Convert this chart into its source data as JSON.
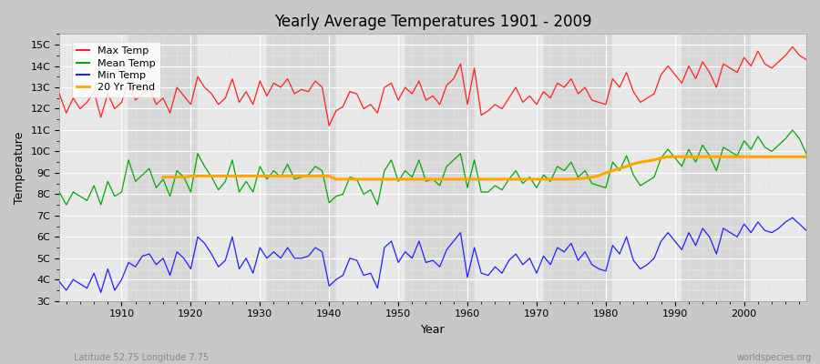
{
  "title": "Yearly Average Temperatures 1901 - 2009",
  "ylabel": "Temperature",
  "xlabel": "Year",
  "subtitle_left": "Latitude 52.75 Longitude 7.75",
  "subtitle_right": "worldspecies.org",
  "ylim": [
    3,
    15.5
  ],
  "xlim": [
    1901,
    2009
  ],
  "yticks": [
    3,
    4,
    5,
    6,
    7,
    8,
    9,
    10,
    11,
    12,
    13,
    14,
    15
  ],
  "ytick_labels": [
    "3C",
    "4C",
    "5C",
    "6C",
    "7C",
    "8C",
    "9C",
    "10C",
    "11C",
    "12C",
    "13C",
    "14C",
    "15C"
  ],
  "xticks": [
    1910,
    1920,
    1930,
    1940,
    1950,
    1960,
    1970,
    1980,
    1990,
    2000
  ],
  "colors": {
    "max_temp": "#ff2020",
    "mean_temp": "#00aa00",
    "min_temp": "#2020ff",
    "trend": "#ffa500",
    "bg_fig": "#c8c8c8",
    "bg_ax": "#dcdcdc"
  },
  "legend": {
    "max_label": "Max Temp",
    "mean_label": "Mean Temp",
    "min_label": "Min Temp",
    "trend_label": "20 Yr Trend"
  },
  "years": [
    1901,
    1902,
    1903,
    1904,
    1905,
    1906,
    1907,
    1908,
    1909,
    1910,
    1911,
    1912,
    1913,
    1914,
    1915,
    1916,
    1917,
    1918,
    1919,
    1920,
    1921,
    1922,
    1923,
    1924,
    1925,
    1926,
    1927,
    1928,
    1929,
    1930,
    1931,
    1932,
    1933,
    1934,
    1935,
    1936,
    1937,
    1938,
    1939,
    1940,
    1941,
    1942,
    1943,
    1944,
    1945,
    1946,
    1947,
    1948,
    1949,
    1950,
    1951,
    1952,
    1953,
    1954,
    1955,
    1956,
    1957,
    1958,
    1959,
    1960,
    1961,
    1962,
    1963,
    1964,
    1965,
    1966,
    1967,
    1968,
    1969,
    1970,
    1971,
    1972,
    1973,
    1974,
    1975,
    1976,
    1977,
    1978,
    1979,
    1980,
    1981,
    1982,
    1983,
    1984,
    1985,
    1986,
    1987,
    1988,
    1989,
    1990,
    1991,
    1992,
    1993,
    1994,
    1995,
    1996,
    1997,
    1998,
    1999,
    2000,
    2001,
    2002,
    2003,
    2004,
    2005,
    2006,
    2007,
    2008,
    2009
  ],
  "max_temp": [
    12.7,
    11.8,
    12.5,
    12.0,
    12.3,
    12.8,
    11.6,
    12.7,
    12.0,
    12.3,
    13.3,
    12.4,
    12.7,
    13.0,
    12.2,
    12.5,
    11.8,
    13.0,
    12.6,
    12.2,
    13.5,
    13.0,
    12.7,
    12.2,
    12.5,
    13.4,
    12.3,
    12.8,
    12.2,
    13.3,
    12.6,
    13.2,
    13.0,
    13.4,
    12.7,
    12.9,
    12.8,
    13.3,
    13.0,
    11.2,
    11.9,
    12.1,
    12.8,
    12.7,
    12.0,
    12.2,
    11.8,
    13.0,
    13.2,
    12.4,
    13.0,
    12.7,
    13.3,
    12.4,
    12.6,
    12.2,
    13.1,
    13.4,
    14.1,
    12.2,
    13.9,
    11.7,
    11.9,
    12.2,
    12.0,
    12.5,
    13.0,
    12.3,
    12.6,
    12.2,
    12.8,
    12.5,
    13.2,
    13.0,
    13.4,
    12.7,
    13.0,
    12.4,
    12.3,
    12.2,
    13.4,
    13.0,
    13.7,
    12.8,
    12.3,
    12.5,
    12.7,
    13.6,
    14.0,
    13.6,
    13.2,
    14.0,
    13.4,
    14.2,
    13.7,
    13.0,
    14.1,
    13.9,
    13.7,
    14.4,
    14.0,
    14.7,
    14.1,
    13.9,
    14.2,
    14.5,
    14.9,
    14.5,
    14.3
  ],
  "mean_temp": [
    8.1,
    7.5,
    8.1,
    7.9,
    7.7,
    8.4,
    7.5,
    8.6,
    7.9,
    8.1,
    9.6,
    8.6,
    8.9,
    9.2,
    8.3,
    8.7,
    7.9,
    9.1,
    8.8,
    8.1,
    9.9,
    9.3,
    8.8,
    8.2,
    8.6,
    9.6,
    8.1,
    8.6,
    8.1,
    9.3,
    8.7,
    9.1,
    8.8,
    9.4,
    8.7,
    8.8,
    8.9,
    9.3,
    9.1,
    7.6,
    7.9,
    8.0,
    8.8,
    8.7,
    8.0,
    8.2,
    7.5,
    9.1,
    9.6,
    8.6,
    9.1,
    8.8,
    9.6,
    8.6,
    8.7,
    8.4,
    9.3,
    9.6,
    9.9,
    8.3,
    9.6,
    8.1,
    8.1,
    8.4,
    8.2,
    8.7,
    9.1,
    8.5,
    8.8,
    8.3,
    8.9,
    8.6,
    9.3,
    9.1,
    9.5,
    8.8,
    9.1,
    8.5,
    8.4,
    8.3,
    9.5,
    9.1,
    9.8,
    8.9,
    8.4,
    8.6,
    8.8,
    9.7,
    10.1,
    9.7,
    9.3,
    10.1,
    9.5,
    10.3,
    9.8,
    9.1,
    10.2,
    10.0,
    9.8,
    10.5,
    10.1,
    10.7,
    10.2,
    10.0,
    10.3,
    10.6,
    11.0,
    10.6,
    9.9
  ],
  "min_temp": [
    3.9,
    3.5,
    4.0,
    3.8,
    3.6,
    4.3,
    3.4,
    4.5,
    3.5,
    4.0,
    4.8,
    4.6,
    5.1,
    5.2,
    4.7,
    5.0,
    4.2,
    5.3,
    5.0,
    4.5,
    6.0,
    5.7,
    5.2,
    4.6,
    4.9,
    6.0,
    4.5,
    5.0,
    4.3,
    5.5,
    5.0,
    5.3,
    5.0,
    5.5,
    5.0,
    5.0,
    5.1,
    5.5,
    5.3,
    3.7,
    4.0,
    4.2,
    5.0,
    4.9,
    4.2,
    4.3,
    3.6,
    5.5,
    5.8,
    4.8,
    5.3,
    5.0,
    5.8,
    4.8,
    4.9,
    4.6,
    5.4,
    5.8,
    6.2,
    4.1,
    5.5,
    4.3,
    4.2,
    4.6,
    4.3,
    4.9,
    5.2,
    4.7,
    5.0,
    4.3,
    5.1,
    4.7,
    5.5,
    5.3,
    5.7,
    4.9,
    5.3,
    4.7,
    4.5,
    4.4,
    5.6,
    5.2,
    6.0,
    4.9,
    4.5,
    4.7,
    5.0,
    5.8,
    6.2,
    5.8,
    5.4,
    6.2,
    5.6,
    6.4,
    6.0,
    5.2,
    6.4,
    6.2,
    6.0,
    6.6,
    6.2,
    6.7,
    6.3,
    6.2,
    6.4,
    6.7,
    6.9,
    6.6,
    6.3
  ],
  "trend_start_year": 1916,
  "trend": [
    8.8,
    8.8,
    8.8,
    8.8,
    8.85,
    8.85,
    8.85,
    8.85,
    8.85,
    8.85,
    8.85,
    8.85,
    8.85,
    8.85,
    8.85,
    8.85,
    8.85,
    8.85,
    8.85,
    8.85,
    8.85,
    8.85,
    8.85,
    8.85,
    8.85,
    8.7,
    8.7,
    8.7,
    8.7,
    8.7,
    8.7,
    8.7,
    8.7,
    8.7,
    8.7,
    8.7,
    8.7,
    8.7,
    8.7,
    8.7,
    8.7,
    8.7,
    8.7,
    8.7,
    8.7,
    8.7,
    8.7,
    8.7,
    8.7,
    8.7,
    8.7,
    8.7,
    8.7,
    8.7,
    8.7,
    8.7,
    8.7,
    8.7,
    8.7,
    8.7,
    8.72,
    8.75,
    8.8,
    8.87,
    9.0,
    9.1,
    9.2,
    9.3,
    9.42,
    9.5,
    9.55,
    9.6,
    9.7,
    9.75,
    9.75,
    9.75,
    9.75,
    9.75,
    9.75,
    9.75,
    9.75,
    9.75,
    9.75,
    9.75,
    9.75,
    9.75,
    9.75,
    9.75,
    9.75,
    9.75,
    9.75,
    9.75,
    9.75,
    9.75
  ]
}
